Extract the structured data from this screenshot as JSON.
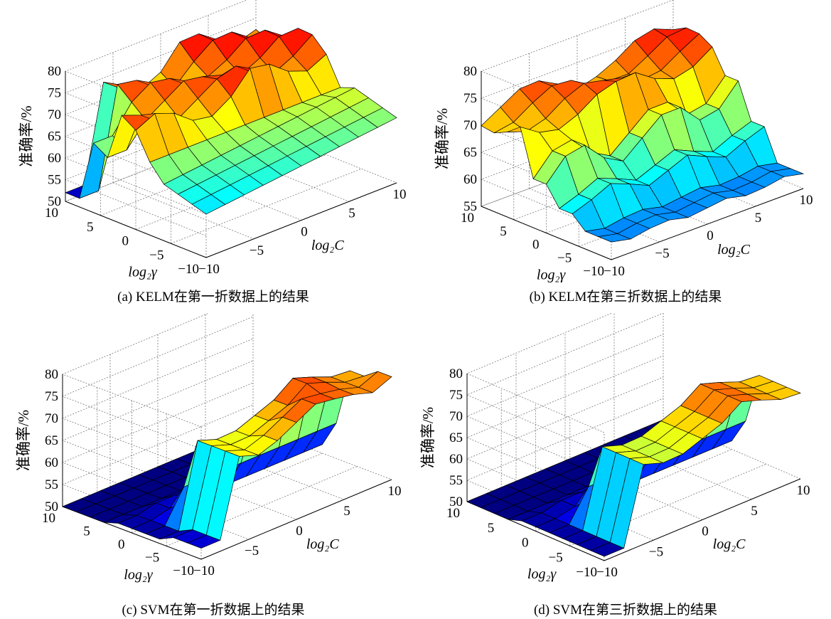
{
  "chart_data": [
    {
      "type": "surface3d",
      "caption": "(a) KELM在第一折数据上的结果",
      "zlabel": "准确率/%",
      "xlabel": "log₂C",
      "ylabel": "log₂γ",
      "zticks": [
        "50",
        "55",
        "60",
        "65",
        "70",
        "75",
        "80"
      ],
      "xticks": [
        "−10",
        "−5",
        "0",
        "5",
        "10"
      ],
      "yticks": [
        "10",
        "5",
        "0",
        "−5",
        "−10"
      ],
      "zlim": [
        50,
        80
      ],
      "colormap": "jet",
      "grid": true
    },
    {
      "type": "surface3d",
      "caption": "(b) KELM在第三折数据上的结果",
      "zlabel": "准确率/%",
      "xlabel": "log₂C",
      "ylabel": "log₂γ",
      "zticks": [
        "55",
        "60",
        "65",
        "70",
        "75",
        "80"
      ],
      "xticks": [
        "−10",
        "−5",
        "0",
        "5",
        "10"
      ],
      "yticks": [
        "10",
        "5",
        "0",
        "−5",
        "−10"
      ],
      "zlim": [
        55,
        80
      ],
      "colormap": "jet",
      "grid": true
    },
    {
      "type": "surface3d",
      "caption": "(c) SVM在第一折数据上的结果",
      "zlabel": "准确率/%",
      "xlabel": "log₂C",
      "ylabel": "log₂γ",
      "zticks": [
        "50",
        "55",
        "60",
        "65",
        "70",
        "75",
        "80"
      ],
      "xticks": [
        "−10",
        "−5",
        "0",
        "5",
        "10"
      ],
      "yticks": [
        "10",
        "5",
        "0",
        "−5",
        "−10"
      ],
      "zlim": [
        50,
        80
      ],
      "colormap": "jet",
      "grid": true
    },
    {
      "type": "surface3d",
      "caption": "(d) SVM在第三折数据上的结果",
      "zlabel": "准确率/%",
      "xlabel": "log₂C",
      "ylabel": "log₂γ",
      "zticks": [
        "50",
        "55",
        "60",
        "65",
        "70",
        "75",
        "80"
      ],
      "xticks": [
        "−10",
        "−5",
        "0",
        "5",
        "10"
      ],
      "yticks": [
        "10",
        "5",
        "0",
        "−5",
        "−10"
      ],
      "zlim": [
        50,
        80
      ],
      "colormap": "jet",
      "grid": true
    }
  ]
}
